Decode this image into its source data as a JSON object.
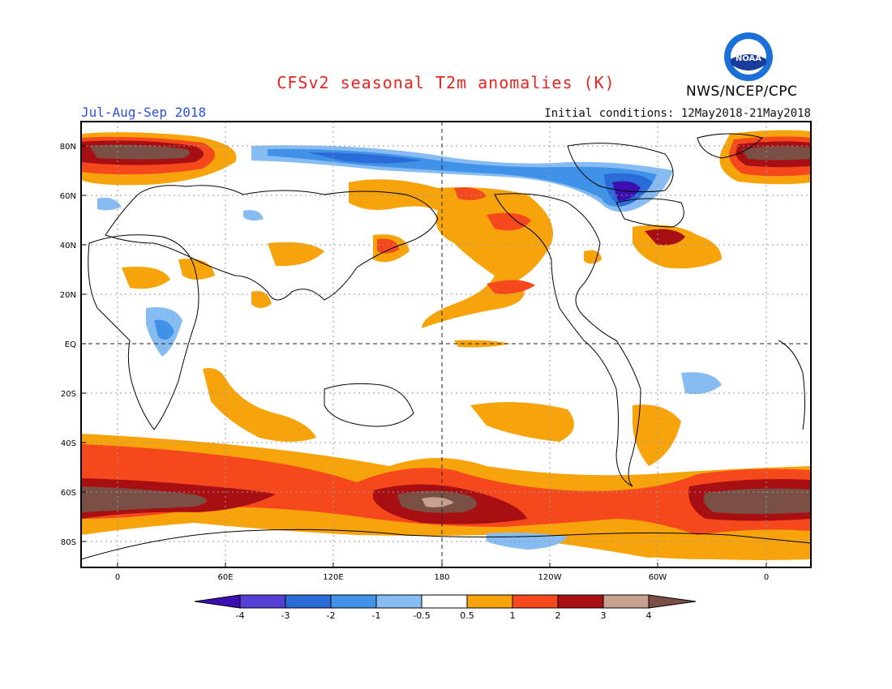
{
  "title": "CFSv2 seasonal T2m anomalies (K)",
  "agency": "NWS/NCEP/CPC",
  "logo_text": "NOAA",
  "period": "Jul-Aug-Sep 2018",
  "initial_conditions": "Initial conditions: 12May2018-21May2018",
  "lat_labels": [
    "80N",
    "60N",
    "40N",
    "20N",
    "EQ",
    "20S",
    "40S",
    "60S",
    "80S"
  ],
  "lon_labels": [
    "0",
    "60E",
    "120E",
    "180",
    "120W",
    "60W",
    "0"
  ],
  "colorbar": {
    "ticks": [
      "-4",
      "-3",
      "-2",
      "-1",
      "-0.5",
      "0.5",
      "1",
      "2",
      "3",
      "4"
    ],
    "colors": [
      "#3b0fb0",
      "#5540d6",
      "#2a6bd8",
      "#3f92e8",
      "#86bcf2",
      "#ffffff",
      "#f7a30c",
      "#f5481c",
      "#a80f12",
      "#c8a090",
      "#7a4f44"
    ]
  }
}
